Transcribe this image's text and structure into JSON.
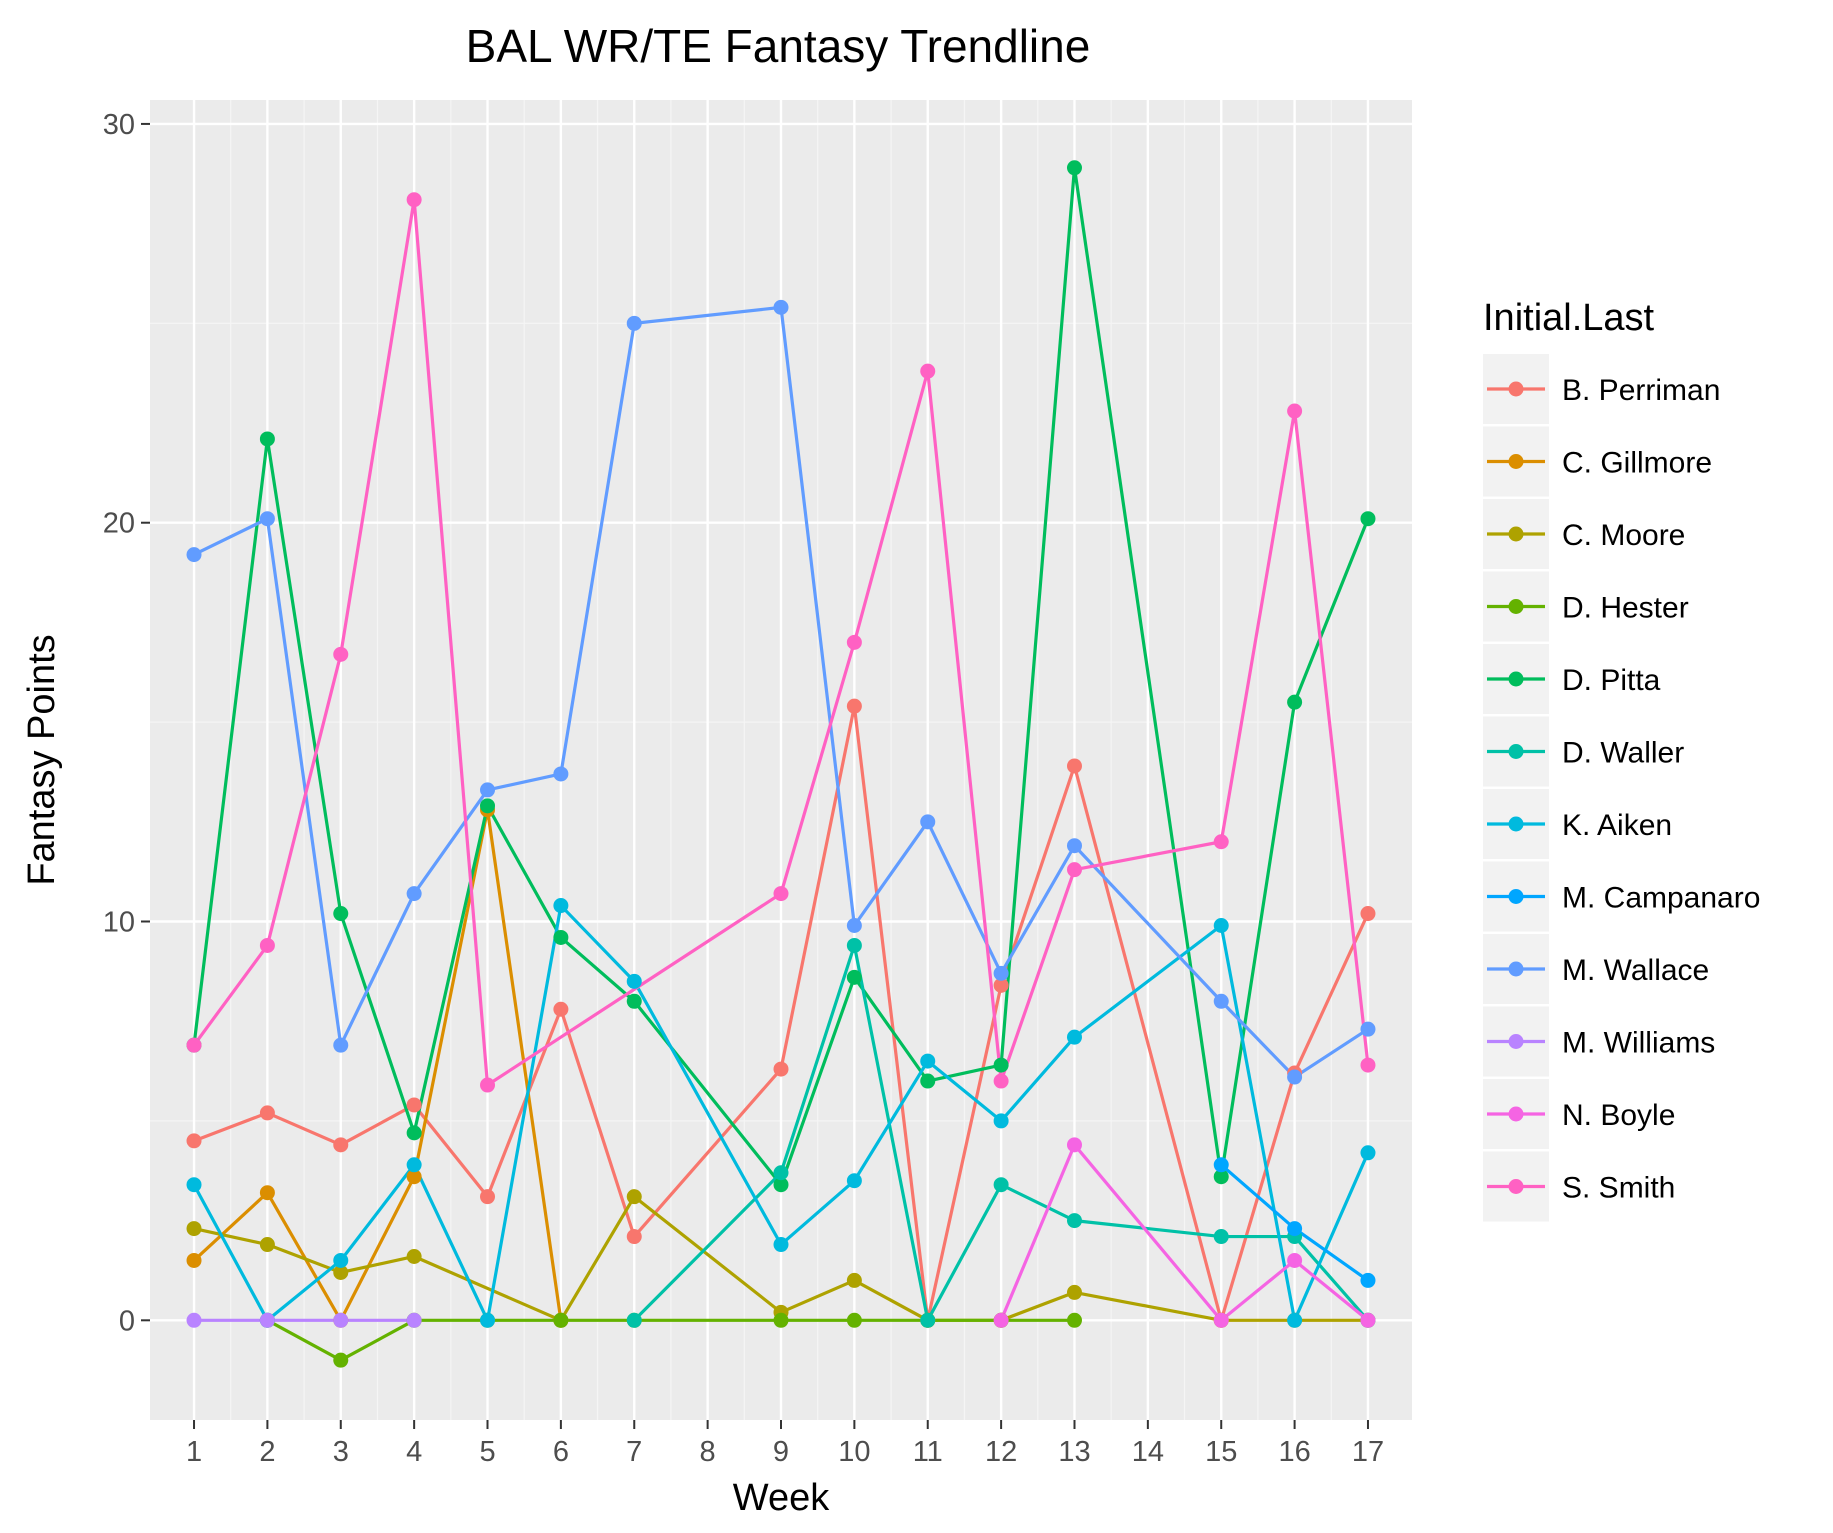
{
  "chart_data": {
    "type": "line",
    "title": "BAL WR/TE Fantasy Trendline",
    "xlabel": "Week",
    "ylabel": "Fantasy Points",
    "categories": [
      "1",
      "2",
      "3",
      "4",
      "5",
      "6",
      "7",
      "8",
      "9",
      "10",
      "11",
      "12",
      "13",
      "14",
      "15",
      "16",
      "17"
    ],
    "y_ticks": [
      0,
      10,
      20,
      30
    ],
    "ylim": [
      -2.5,
      30.6
    ],
    "grid": true,
    "legend_title": "Initial.Last",
    "legend_position": "right",
    "series": [
      {
        "name": "B. Perriman",
        "color": "#F8766D",
        "values": [
          4.5,
          5.2,
          4.4,
          5.4,
          3.1,
          7.8,
          2.1,
          null,
          6.3,
          15.4,
          0,
          8.4,
          13.9,
          null,
          0,
          6.2,
          10.2
        ]
      },
      {
        "name": "C. Gillmore",
        "color": "#DB8E00",
        "values": [
          1.5,
          3.2,
          0,
          3.6,
          12.8,
          0,
          null,
          null,
          null,
          null,
          null,
          null,
          null,
          null,
          null,
          null,
          null
        ]
      },
      {
        "name": "C. Moore",
        "color": "#AEA200",
        "values": [
          2.3,
          1.9,
          1.2,
          1.6,
          null,
          0,
          3.1,
          null,
          0.2,
          1.0,
          0,
          0,
          0.7,
          null,
          0,
          0,
          0
        ]
      },
      {
        "name": "D. Hester",
        "color": "#64B200",
        "values": [
          null,
          0,
          -1,
          0,
          0,
          0,
          0,
          null,
          0,
          0,
          0,
          0,
          0,
          null,
          null,
          null,
          null
        ]
      },
      {
        "name": "D. Pitta",
        "color": "#00BD5C",
        "values": [
          6.9,
          22.1,
          10.2,
          4.7,
          12.9,
          9.6,
          8.0,
          null,
          3.4,
          8.6,
          6.0,
          6.4,
          28.9,
          null,
          3.6,
          15.5,
          20.1
        ]
      },
      {
        "name": "D. Waller",
        "color": "#00C1A7",
        "values": [
          null,
          null,
          null,
          null,
          null,
          null,
          0,
          null,
          3.7,
          9.4,
          0,
          3.4,
          2.5,
          null,
          2.1,
          2.1,
          0
        ]
      },
      {
        "name": "K. Aiken",
        "color": "#00BADE",
        "values": [
          3.4,
          0,
          1.5,
          3.9,
          0,
          10.4,
          8.5,
          null,
          1.9,
          3.5,
          6.5,
          5.0,
          7.1,
          null,
          9.9,
          0,
          4.2
        ]
      },
      {
        "name": "M. Campanaro",
        "color": "#00A6FF",
        "values": [
          null,
          null,
          null,
          null,
          null,
          null,
          null,
          null,
          null,
          null,
          null,
          null,
          null,
          null,
          3.9,
          2.3,
          1.0
        ]
      },
      {
        "name": "M. Wallace",
        "color": "#619CFF",
        "values": [
          19.2,
          20.1,
          6.9,
          10.7,
          13.3,
          13.7,
          25.0,
          null,
          25.4,
          9.9,
          12.5,
          8.7,
          11.9,
          null,
          8.0,
          6.1,
          7.3
        ]
      },
      {
        "name": "M. Williams",
        "color": "#B983FF",
        "values": [
          0,
          0,
          0,
          0,
          null,
          null,
          null,
          null,
          null,
          null,
          null,
          null,
          null,
          null,
          null,
          null,
          null
        ]
      },
      {
        "name": "N. Boyle",
        "color": "#F564E3",
        "values": [
          null,
          null,
          null,
          null,
          null,
          null,
          null,
          null,
          null,
          null,
          null,
          0,
          4.4,
          null,
          0,
          1.5,
          0
        ]
      },
      {
        "name": "S. Smith",
        "color": "#FF61C3",
        "values": [
          6.9,
          9.4,
          16.7,
          28.1,
          5.9,
          null,
          null,
          null,
          10.7,
          17.0,
          23.8,
          6.0,
          11.3,
          null,
          12.0,
          22.8,
          6.4
        ]
      }
    ]
  }
}
